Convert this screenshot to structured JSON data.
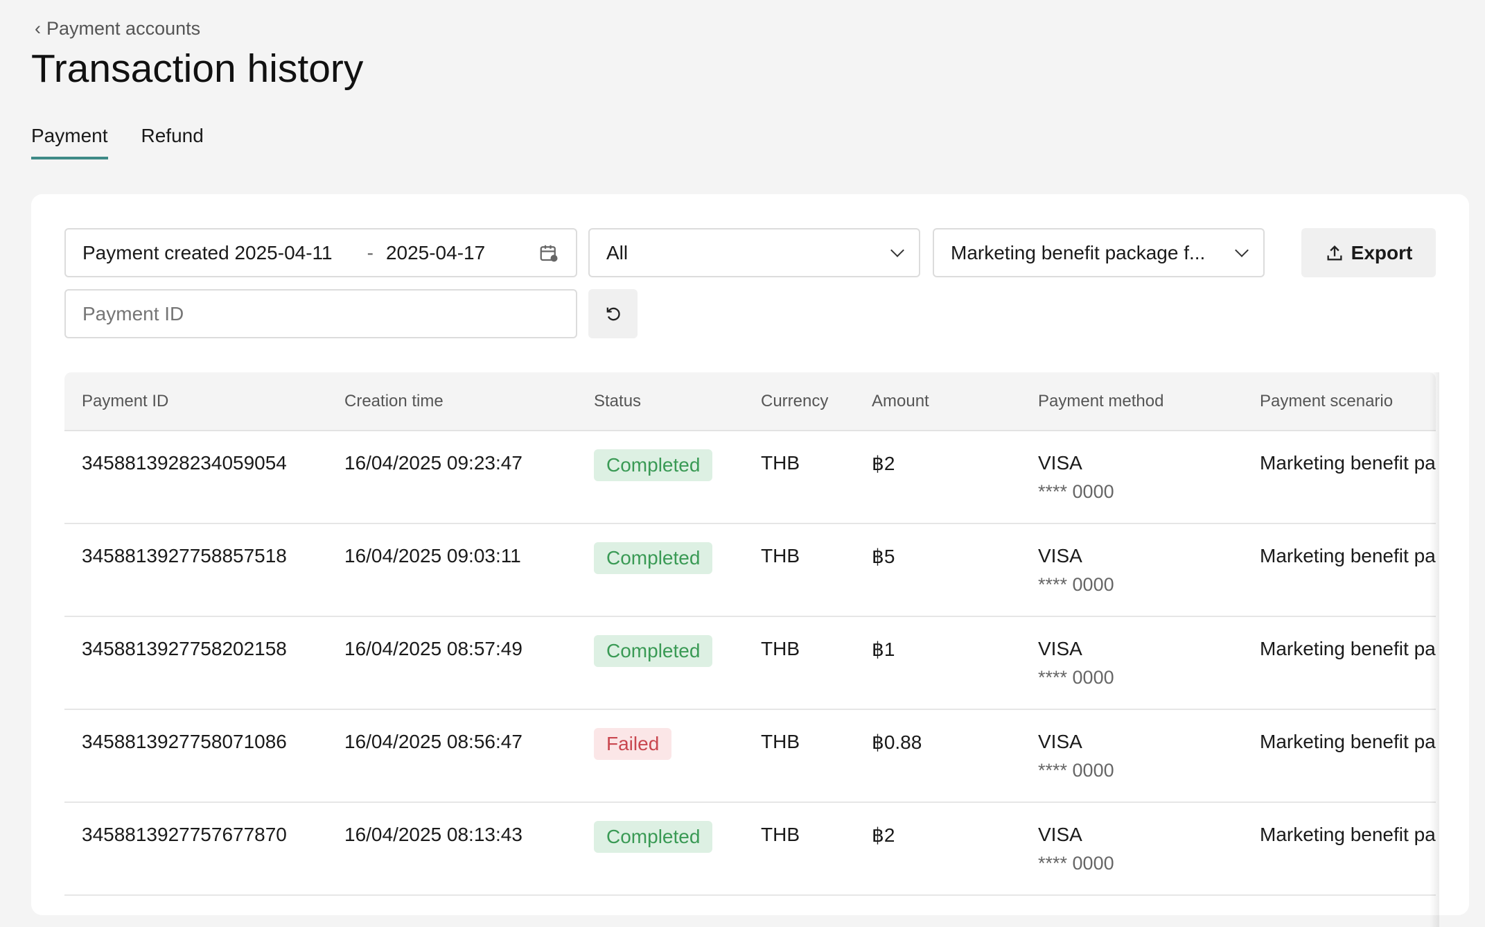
{
  "breadcrumb": {
    "label": "Payment accounts"
  },
  "page_title": "Transaction history",
  "tabs": [
    {
      "label": "Payment",
      "active": true
    },
    {
      "label": "Refund",
      "active": false
    }
  ],
  "filters": {
    "date_label": "Payment created",
    "date_start": "2025-04-11",
    "date_sep": "-",
    "date_end": "2025-04-17",
    "status_select": "All",
    "scenario_select": "Marketing benefit package f...",
    "export_label": "Export",
    "payment_id_placeholder": "Payment ID"
  },
  "table": {
    "columns": [
      "Payment ID",
      "Creation time",
      "Status",
      "Currency",
      "Amount",
      "Payment method",
      "Payment scenario"
    ],
    "rows": [
      {
        "id": "3458813928234059054",
        "time": "16/04/2025 09:23:47",
        "status": "Completed",
        "currency": "THB",
        "amount": "฿2",
        "method": "VISA",
        "card": "**** 0000",
        "scenario": "Marketing benefit package"
      },
      {
        "id": "3458813927758857518",
        "time": "16/04/2025 09:03:11",
        "status": "Completed",
        "currency": "THB",
        "amount": "฿5",
        "method": "VISA",
        "card": "**** 0000",
        "scenario": "Marketing benefit package"
      },
      {
        "id": "3458813927758202158",
        "time": "16/04/2025 08:57:49",
        "status": "Completed",
        "currency": "THB",
        "amount": "฿1",
        "method": "VISA",
        "card": "**** 0000",
        "scenario": "Marketing benefit package"
      },
      {
        "id": "3458813927758071086",
        "time": "16/04/2025 08:56:47",
        "status": "Failed",
        "currency": "THB",
        "amount": "฿0.88",
        "method": "VISA",
        "card": "**** 0000",
        "scenario": "Marketing benefit package"
      },
      {
        "id": "3458813927757677870",
        "time": "16/04/2025 08:13:43",
        "status": "Completed",
        "currency": "THB",
        "amount": "฿2",
        "method": "VISA",
        "card": "**** 0000",
        "scenario": "Marketing benefit package"
      }
    ]
  },
  "colors": {
    "accent": "#3e8a87",
    "completed_bg": "#ddf0e3",
    "completed_text": "#3a9a55",
    "failed_bg": "#fbe6e7",
    "failed_text": "#c9474f"
  }
}
